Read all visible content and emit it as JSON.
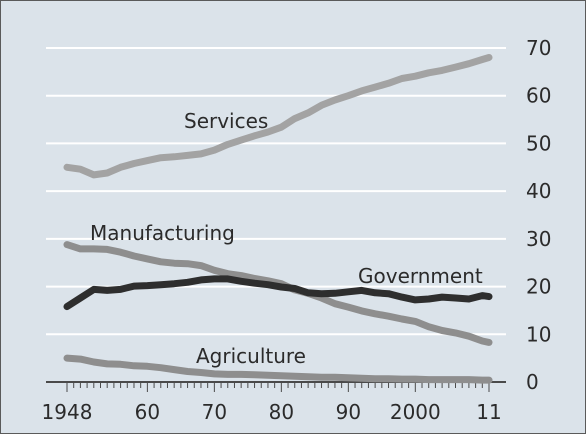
{
  "chart_data": {
    "type": "line",
    "title": "",
    "xlabel": "",
    "ylabel": "",
    "xlim": [
      1948,
      2011
    ],
    "ylim": [
      0,
      70
    ],
    "grid": true,
    "x_ticks": [
      1948,
      1960,
      1970,
      1980,
      1990,
      2000,
      2011
    ],
    "x_tick_labels": [
      "1948",
      "60",
      "70",
      "80",
      "90",
      "2000",
      "11"
    ],
    "y_ticks": [
      0,
      10,
      20,
      30,
      40,
      50,
      60,
      70
    ],
    "y_tick_labels": [
      "0",
      "10",
      "20",
      "30",
      "40",
      "50",
      "60",
      "70"
    ],
    "colors": {
      "background": "#dbe3ea",
      "grid": "#ffffff",
      "services": "#a3a3a3",
      "manufacturing": "#8e8e8e",
      "government": "#2e2e2e",
      "agriculture": "#8e8e8e"
    },
    "series": [
      {
        "name": "Services",
        "x": [
          1948,
          1950,
          1952,
          1954,
          1956,
          1958,
          1960,
          1962,
          1964,
          1966,
          1968,
          1970,
          1972,
          1974,
          1976,
          1978,
          1980,
          1982,
          1984,
          1986,
          1988,
          1990,
          1992,
          1994,
          1996,
          1998,
          2000,
          2002,
          2004,
          2006,
          2008,
          2010,
          2011
        ],
        "y": [
          45,
          44.6,
          43.4,
          43.8,
          45,
          45.8,
          46.4,
          47,
          47.2,
          47.5,
          47.8,
          48.6,
          49.8,
          50.7,
          51.6,
          52.4,
          53.4,
          55.2,
          56.4,
          58,
          59.1,
          60,
          61,
          61.8,
          62.6,
          63.6,
          64.1,
          64.8,
          65.3,
          66,
          66.7,
          67.6,
          68
        ]
      },
      {
        "name": "Manufacturing",
        "x": [
          1948,
          1950,
          1952,
          1954,
          1956,
          1958,
          1960,
          1962,
          1964,
          1966,
          1968,
          1970,
          1972,
          1974,
          1976,
          1978,
          1980,
          1982,
          1984,
          1986,
          1988,
          1990,
          1992,
          1994,
          1996,
          1998,
          2000,
          2002,
          2004,
          2006,
          2008,
          2010,
          2011
        ],
        "y": [
          28.8,
          27.9,
          27.9,
          27.8,
          27.2,
          26.4,
          25.8,
          25.2,
          24.9,
          24.8,
          24.4,
          23.4,
          22.7,
          22.3,
          21.7,
          21.2,
          20.6,
          19.3,
          18.6,
          17.6,
          16.4,
          15.7,
          14.9,
          14.3,
          13.8,
          13.2,
          12.7,
          11.6,
          10.8,
          10.3,
          9.6,
          8.6,
          8.3
        ]
      },
      {
        "name": "Government",
        "x": [
          1948,
          1950,
          1952,
          1954,
          1956,
          1958,
          1960,
          1962,
          1964,
          1966,
          1968,
          1970,
          1972,
          1974,
          1976,
          1978,
          1980,
          1982,
          1984,
          1986,
          1988,
          1990,
          1992,
          1994,
          1996,
          1998,
          2000,
          2002,
          2004,
          2006,
          2008,
          2010,
          2011
        ],
        "y": [
          15.8,
          17.6,
          19.4,
          19.2,
          19.4,
          20.1,
          20.2,
          20.4,
          20.6,
          20.9,
          21.4,
          21.6,
          21.6,
          21.1,
          20.7,
          20.4,
          19.9,
          19.6,
          18.7,
          18.5,
          18.6,
          18.9,
          19.2,
          18.7,
          18.5,
          17.8,
          17.2,
          17.4,
          17.8,
          17.6,
          17.4,
          18.1,
          17.9
        ]
      },
      {
        "name": "Agriculture",
        "x": [
          1948,
          1950,
          1952,
          1954,
          1956,
          1958,
          1960,
          1962,
          1964,
          1966,
          1968,
          1970,
          1972,
          1974,
          1976,
          1978,
          1980,
          1982,
          1984,
          1986,
          1988,
          1990,
          1992,
          1994,
          1996,
          1998,
          2000,
          2002,
          2004,
          2006,
          2008,
          2010,
          2011
        ],
        "y": [
          5,
          4.8,
          4.2,
          3.8,
          3.7,
          3.4,
          3.3,
          3,
          2.6,
          2.2,
          2,
          1.7,
          1.6,
          1.6,
          1.5,
          1.4,
          1.3,
          1.2,
          1.1,
          1,
          1,
          0.9,
          0.8,
          0.7,
          0.7,
          0.6,
          0.6,
          0.5,
          0.5,
          0.5,
          0.5,
          0.4,
          0.4
        ]
      }
    ]
  }
}
